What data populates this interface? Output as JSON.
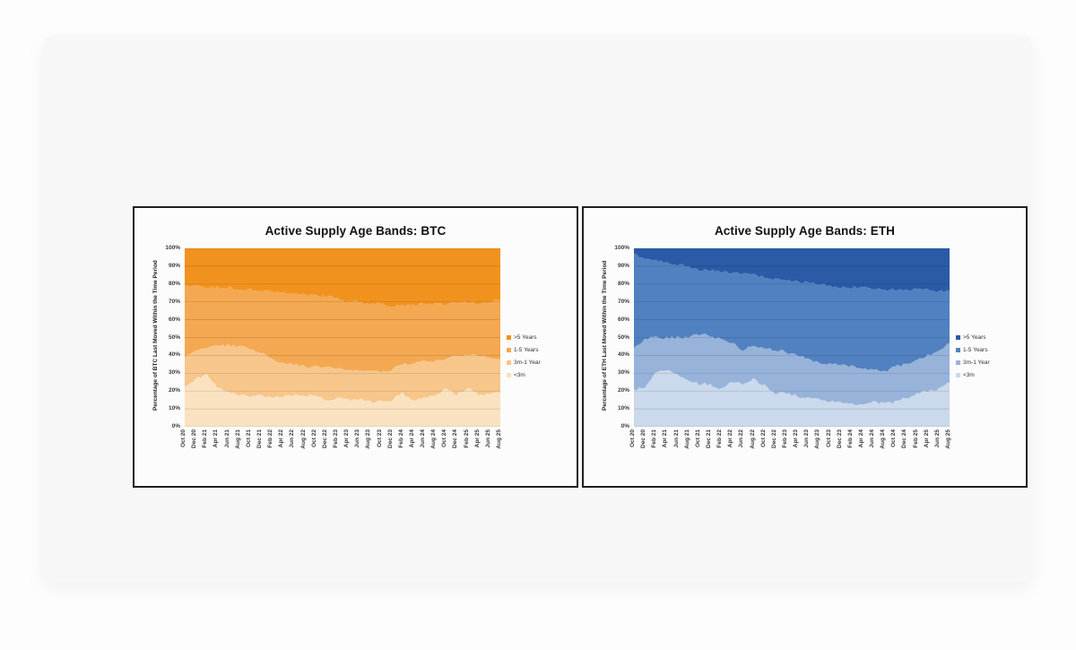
{
  "chart_data": [
    {
      "type": "area",
      "stacked": true,
      "title": "Active Supply Age Bands: BTC",
      "ylabel": "Percentage of BTC Last Moved Within the Time Period",
      "ylim": [
        0,
        100
      ],
      "grid": "horizontal",
      "legend_position": "right",
      "legend_order": [
        ">5 Years",
        "1-5 Years",
        "3m-1 Year",
        "<3m"
      ],
      "ytick_labels": [
        "0%",
        "10%",
        "20%",
        "30%",
        "40%",
        "50%",
        "60%",
        "70%",
        "80%",
        "90%",
        "100%"
      ],
      "categories": [
        "Oct 20",
        "Dec 20",
        "Feb 21",
        "Apr 21",
        "Jun 21",
        "Aug 21",
        "Oct 21",
        "Dec 21",
        "Feb 22",
        "Apr 22",
        "Jun 22",
        "Aug 22",
        "Oct 22",
        "Dec 22",
        "Feb 23",
        "Apr 23",
        "Jun 23",
        "Aug 23",
        "Oct 23",
        "Dec 23",
        "Feb 24",
        "Apr 24",
        "Jun 24",
        "Aug 24",
        "Oct 24",
        "Dec 24",
        "Feb 25",
        "Apr 25",
        "Jun 25",
        "Aug 25"
      ],
      "series": [
        {
          "name": "<3m",
          "color": "#fae2c0",
          "values": [
            22,
            27,
            29,
            22,
            19,
            18,
            17,
            18,
            16,
            17,
            18,
            17,
            18,
            15,
            16,
            15,
            16,
            14,
            14,
            15,
            19,
            15,
            16,
            17,
            22,
            18,
            22,
            18,
            19,
            19
          ]
        },
        {
          "name": "3m-1 Year",
          "color": "#f7c68a",
          "values": [
            17,
            15,
            15,
            23,
            27,
            27,
            27,
            24,
            22,
            19,
            17,
            17,
            16,
            18,
            17,
            17,
            16,
            17,
            17,
            17,
            16,
            21,
            21,
            20,
            16,
            22,
            18,
            22,
            20,
            19
          ]
        },
        {
          "name": "1-5 Years",
          "color": "#f4a851",
          "values": [
            40,
            37,
            34,
            33,
            32,
            32,
            33,
            34,
            38,
            39,
            40,
            40,
            40,
            40,
            39,
            38,
            38,
            38,
            38,
            36,
            33,
            32,
            32,
            32,
            31,
            30,
            30,
            29,
            31,
            33
          ]
        },
        {
          "name": ">5 Years",
          "color": "#f2921e",
          "values": [
            21,
            21,
            22,
            22,
            22,
            23,
            23,
            24,
            24,
            25,
            25,
            26,
            26,
            27,
            28,
            30,
            30,
            31,
            31,
            32,
            32,
            32,
            31,
            31,
            31,
            30,
            30,
            31,
            30,
            29
          ]
        }
      ]
    },
    {
      "type": "area",
      "stacked": true,
      "title": "Active Supply Age Bands: ETH",
      "ylabel": "Percentage of ETH Last Moved Within the Time Period",
      "ylim": [
        0,
        100
      ],
      "grid": "horizontal",
      "legend_position": "right",
      "legend_order": [
        ">5 Years",
        "1-5 Years",
        "3m-1 Year",
        "<3m"
      ],
      "ytick_labels": [
        "0%",
        "10%",
        "20%",
        "30%",
        "40%",
        "50%",
        "60%",
        "70%",
        "80%",
        "90%",
        "100%"
      ],
      "categories": [
        "Oct 20",
        "Dec 20",
        "Feb 21",
        "Apr 21",
        "Jun 21",
        "Aug 21",
        "Oct 21",
        "Dec 21",
        "Feb 22",
        "Apr 22",
        "Jun 22",
        "Aug 22",
        "Oct 22",
        "Dec 22",
        "Feb 23",
        "Apr 23",
        "Jun 23",
        "Aug 23",
        "Oct 23",
        "Dec 23",
        "Feb 24",
        "Apr 24",
        "Jun 24",
        "Aug 24",
        "Oct 24",
        "Dec 24",
        "Feb 25",
        "Apr 25",
        "Jun 25",
        "Aug 25"
      ],
      "series": [
        {
          "name": "<3m",
          "color": "#cad9eb",
          "values": [
            21,
            22,
            30,
            32,
            29,
            26,
            24,
            24,
            21,
            25,
            24,
            27,
            23,
            19,
            19,
            17,
            16,
            15,
            14,
            14,
            13,
            13,
            14,
            13,
            14,
            16,
            19,
            20,
            21,
            25
          ]
        },
        {
          "name": "3m-1 Year",
          "color": "#97b3da",
          "values": [
            23,
            27,
            20,
            18,
            21,
            24,
            28,
            27,
            28,
            22,
            19,
            19,
            21,
            24,
            23,
            23,
            22,
            21,
            21,
            21,
            21,
            20,
            18,
            18,
            20,
            19,
            18,
            20,
            22,
            22
          ]
        },
        {
          "name": "1-5 Years",
          "color": "#5181c1",
          "values": [
            53,
            45,
            43,
            42,
            41,
            40,
            36,
            37,
            38,
            39,
            43,
            39,
            40,
            40,
            40,
            41,
            43,
            44,
            44,
            43,
            44,
            45,
            45,
            46,
            43,
            42,
            40,
            37,
            33,
            29
          ]
        },
        {
          "name": ">5 Years",
          "color": "#2b5aa7",
          "values": [
            3,
            6,
            7,
            8,
            9,
            10,
            12,
            12,
            13,
            14,
            14,
            15,
            16,
            17,
            18,
            19,
            19,
            20,
            21,
            22,
            22,
            22,
            23,
            23,
            23,
            23,
            23,
            23,
            24,
            24
          ]
        }
      ]
    }
  ],
  "style": {
    "gridline_color": "rgba(0,0,0,0.16)",
    "panel_border_color": "#1f1f1f",
    "card_bg": "#f7f7f8",
    "page_bg": "#fdfdfd"
  }
}
